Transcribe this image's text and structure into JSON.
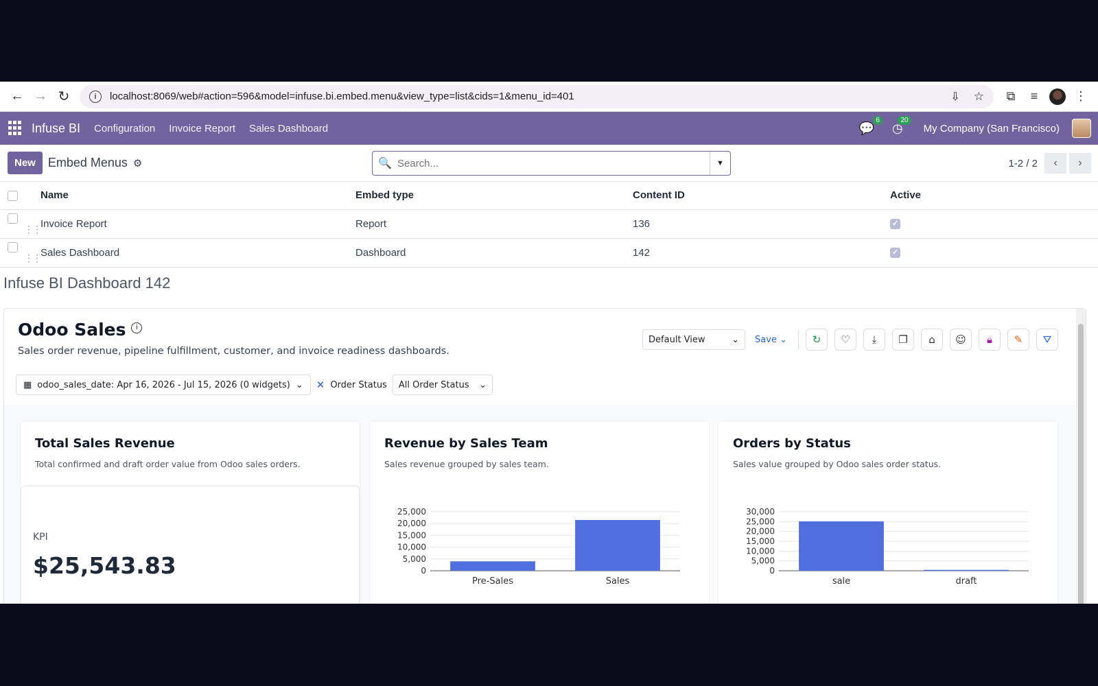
{
  "browser": {
    "url": "localhost:8069/web#action=596&model=infuse.bi.embed.menu&view_type=list&cids=1&menu_id=401"
  },
  "navbar": {
    "brand": "Infuse BI",
    "menus": [
      "Configuration",
      "Invoice Report",
      "Sales Dashboard"
    ],
    "messages_count": "6",
    "activities_count": "20",
    "company": "My Company (San Francisco)"
  },
  "control": {
    "new_label": "New",
    "title": "Embed Menus",
    "search_placeholder": "Search...",
    "pager": "1-2 / 2"
  },
  "list": {
    "headers": {
      "name": "Name",
      "type": "Embed type",
      "content": "Content ID",
      "active": "Active"
    },
    "rows": [
      {
        "name": "Invoice Report",
        "type": "Report",
        "content": "136",
        "active": true
      },
      {
        "name": "Sales Dashboard",
        "type": "Dashboard",
        "content": "142",
        "active": true
      }
    ]
  },
  "dashboard_heading": "Infuse BI Dashboard 142",
  "embed": {
    "title": "Odoo Sales",
    "subtitle": "Sales order revenue, pipeline fulfillment, customer, and invoice readiness dashboards.",
    "view": "Default View",
    "save": "Save",
    "date_filter": "odoo_sales_date: Apr 16, 2026 - Jul 15, 2026 (0 widgets)",
    "status_label": "Order Status",
    "status_value": "All Order Status",
    "cards": {
      "kpi": {
        "title": "Total Sales Revenue",
        "desc": "Total confirmed and draft order value from Odoo sales orders.",
        "label": "KPI",
        "value": "$25,543.83"
      },
      "team": {
        "title": "Revenue by Sales Team",
        "desc": "Sales revenue grouped by sales team."
      },
      "status": {
        "title": "Orders by Status",
        "desc": "Sales value grouped by Odoo sales order status."
      }
    }
  },
  "colors": {
    "odoo_purple": "#71639e",
    "bar": "#4f6fdf",
    "link": "#2563eb"
  },
  "chart_data": [
    {
      "type": "bar",
      "title": "Revenue by Sales Team",
      "categories": [
        "Pre-Sales",
        "Sales"
      ],
      "values": [
        4000,
        21500
      ],
      "ylim": [
        0,
        25000
      ],
      "yticks": [
        0,
        5000,
        10000,
        15000,
        20000,
        25000
      ]
    },
    {
      "type": "bar",
      "title": "Orders by Status",
      "categories": [
        "sale",
        "draft"
      ],
      "values": [
        25100,
        450
      ],
      "ylim": [
        0,
        30000
      ],
      "yticks": [
        0,
        5000,
        10000,
        15000,
        20000,
        25000,
        30000
      ]
    }
  ]
}
